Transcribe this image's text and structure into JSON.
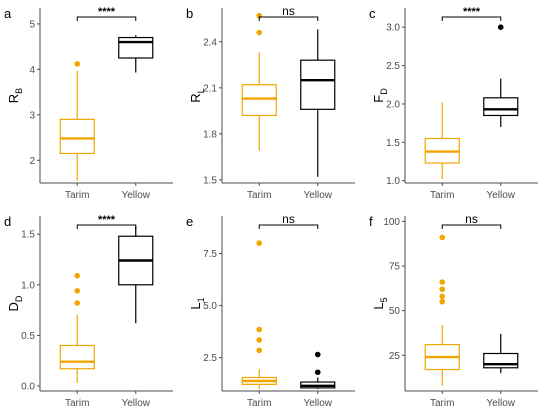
{
  "colors": {
    "tarim": "#F0A500",
    "yellow": "#000000",
    "axis": "#4d4d4d",
    "tick_text": "#4d4d4d"
  },
  "categories": [
    "Tarim",
    "Yellow"
  ],
  "chart_data": [
    {
      "type": "boxplot",
      "panel_label": "a",
      "ylabel": "R",
      "ylabel_sub": "B",
      "ylim": [
        1.5,
        5.35
      ],
      "yticks": [
        2,
        3,
        4,
        5
      ],
      "significance": "****",
      "categories": [
        "Tarim",
        "Yellow"
      ],
      "series": [
        {
          "name": "Tarim",
          "min": 1.55,
          "q1": 2.15,
          "median": 2.48,
          "q3": 2.9,
          "max": 3.97,
          "outliers": [
            4.12
          ]
        },
        {
          "name": "Yellow",
          "min": 3.93,
          "q1": 4.25,
          "median": 4.6,
          "q3": 4.7,
          "max": 4.75,
          "outliers": []
        }
      ]
    },
    {
      "type": "boxplot",
      "panel_label": "b",
      "ylabel": "R",
      "ylabel_sub": "L",
      "ylim": [
        1.48,
        2.62
      ],
      "yticks": [
        1.5,
        1.8,
        2.1,
        2.4
      ],
      "significance": "ns",
      "categories": [
        "Tarim",
        "Yellow"
      ],
      "series": [
        {
          "name": "Tarim",
          "min": 1.69,
          "q1": 1.92,
          "median": 2.03,
          "q3": 2.12,
          "max": 2.33,
          "outliers": [
            2.46,
            2.57
          ]
        },
        {
          "name": "Yellow",
          "min": 1.52,
          "q1": 1.96,
          "median": 2.15,
          "q3": 2.28,
          "max": 2.48,
          "outliers": []
        }
      ]
    },
    {
      "type": "boxplot",
      "panel_label": "c",
      "ylabel": "F",
      "ylabel_sub": "D",
      "ylim": [
        0.97,
        3.25
      ],
      "yticks": [
        1.0,
        1.5,
        2.0,
        2.5,
        3.0
      ],
      "significance": "****",
      "categories": [
        "Tarim",
        "Yellow"
      ],
      "series": [
        {
          "name": "Tarim",
          "min": 1.02,
          "q1": 1.23,
          "median": 1.38,
          "q3": 1.55,
          "max": 2.02,
          "outliers": []
        },
        {
          "name": "Yellow",
          "min": 1.7,
          "q1": 1.85,
          "median": 1.93,
          "q3": 2.08,
          "max": 2.33,
          "outliers": [
            3.0
          ]
        }
      ]
    },
    {
      "type": "boxplot",
      "panel_label": "d",
      "ylabel": "D",
      "ylabel_sub": "D",
      "ylim": [
        -0.05,
        1.68
      ],
      "yticks": [
        0.0,
        0.5,
        1.0,
        1.5
      ],
      "significance": "****",
      "categories": [
        "Tarim",
        "Yellow"
      ],
      "series": [
        {
          "name": "Tarim",
          "min": 0.03,
          "q1": 0.17,
          "median": 0.24,
          "q3": 0.4,
          "max": 0.7,
          "outliers": [
            0.82,
            0.94,
            1.09
          ]
        },
        {
          "name": "Yellow",
          "min": 0.62,
          "q1": 1.0,
          "median": 1.24,
          "q3": 1.48,
          "max": 1.58,
          "outliers": []
        }
      ]
    },
    {
      "type": "boxplot",
      "panel_label": "e",
      "ylabel": "L",
      "ylabel_sub": "1",
      "ylim": [
        0.9,
        9.3
      ],
      "yticks": [
        2.5,
        5.0,
        7.5
      ],
      "significance": "ns",
      "categories": [
        "Tarim",
        "Yellow"
      ],
      "series": [
        {
          "name": "Tarim",
          "min": 1.0,
          "q1": 1.22,
          "median": 1.38,
          "q3": 1.55,
          "max": 1.95,
          "outliers": [
            2.85,
            3.35,
            3.85,
            8.0
          ]
        },
        {
          "name": "Yellow",
          "min": 1.0,
          "q1": 1.05,
          "median": 1.15,
          "q3": 1.33,
          "max": 1.55,
          "outliers": [
            1.8,
            2.65
          ]
        }
      ]
    },
    {
      "type": "boxplot",
      "panel_label": "f",
      "ylabel": "L",
      "ylabel_sub": "5",
      "ylim": [
        5,
        103
      ],
      "yticks": [
        25,
        50,
        75,
        100
      ],
      "significance": "ns",
      "categories": [
        "Tarim",
        "Yellow"
      ],
      "series": [
        {
          "name": "Tarim",
          "min": 8,
          "q1": 17,
          "median": 24,
          "q3": 31,
          "max": 42,
          "outliers": [
            55,
            58,
            62,
            66,
            91
          ]
        },
        {
          "name": "Yellow",
          "min": 15,
          "q1": 18,
          "median": 20,
          "q3": 26,
          "max": 37,
          "outliers": []
        }
      ]
    }
  ]
}
